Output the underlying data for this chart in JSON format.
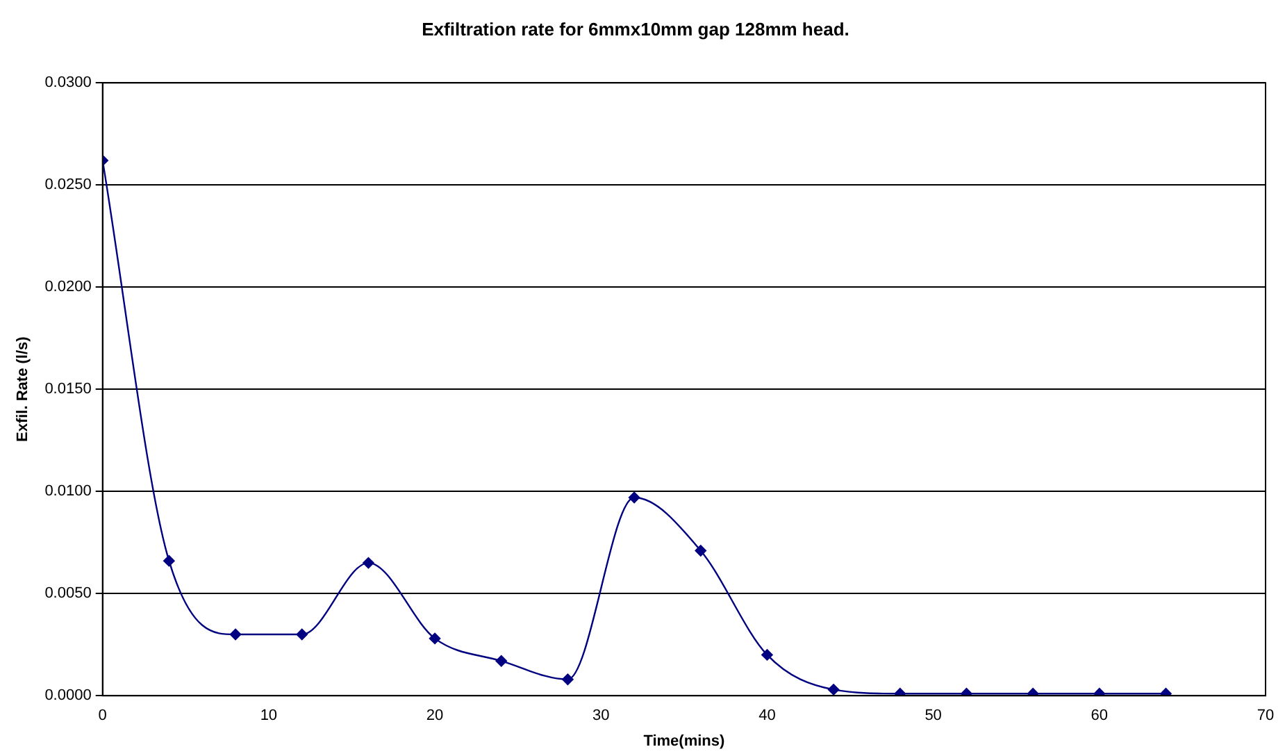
{
  "chart_data": {
    "type": "line",
    "title": "Exfiltration rate for 6mmx10mm gap 128mm head.",
    "xlabel": "Time(mins)",
    "ylabel": "Exfil. Rate (l/s)",
    "x": [
      0,
      4,
      8,
      12,
      16,
      20,
      24,
      28,
      32,
      36,
      40,
      44,
      48,
      52,
      56,
      60,
      64
    ],
    "series": [
      {
        "color": "#000080",
        "values": [
          0.0262,
          0.0066,
          0.003,
          0.003,
          0.0065,
          0.0028,
          0.0017,
          0.0008,
          0.0097,
          0.0071,
          0.002,
          0.0003,
          0.0001,
          0.0001,
          0.0001,
          0.0001,
          0.0001
        ]
      }
    ],
    "xlim": [
      0,
      70
    ],
    "xticks": [
      0,
      10,
      20,
      30,
      40,
      50,
      60,
      70
    ],
    "ylim": [
      0,
      0.03
    ],
    "yticks": [
      {
        "value": 0,
        "label": "0.0000"
      },
      {
        "value": 0.005,
        "label": "0.0050"
      },
      {
        "value": 0.01,
        "label": "0.0100"
      },
      {
        "value": 0.015,
        "label": "0.0150"
      },
      {
        "value": 0.02,
        "label": "0.0200"
      },
      {
        "value": 0.025,
        "label": "0.0250"
      },
      {
        "value": 0.03,
        "label": "0.0300"
      }
    ],
    "grid": "y",
    "legend": false,
    "marker": "diamond",
    "line_style": "solid"
  }
}
